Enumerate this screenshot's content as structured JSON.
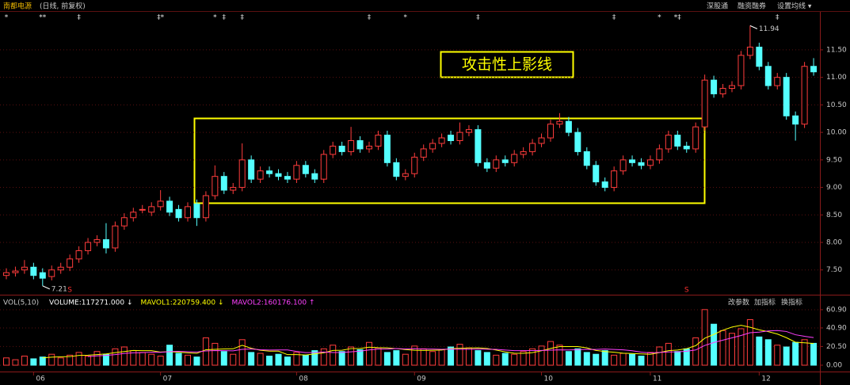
{
  "chart_data": {
    "type": "candlestick",
    "title": "南都电源",
    "subtitle": "(日线, 前复权)",
    "toolbar": [
      "深股通",
      "融资融券",
      "设置均线 ▾"
    ],
    "annotation": "攻击性上影线",
    "max_label": 11.94,
    "min_label": 7.21,
    "up_color": "#ff3c3c",
    "down_color": "#54ffff",
    "grid": true,
    "categories": [
      null,
      null,
      null,
      "06",
      null,
      null,
      null,
      null,
      null,
      null,
      null,
      null,
      null,
      null,
      null,
      null,
      null,
      "07",
      null,
      null,
      null,
      null,
      null,
      null,
      null,
      null,
      null,
      null,
      null,
      null,
      null,
      null,
      "08",
      null,
      null,
      null,
      null,
      null,
      null,
      null,
      null,
      null,
      null,
      null,
      null,
      "09",
      null,
      null,
      null,
      null,
      null,
      null,
      null,
      null,
      null,
      null,
      null,
      null,
      null,
      "10",
      null,
      null,
      null,
      null,
      null,
      null,
      null,
      null,
      null,
      null,
      null,
      "11",
      null,
      null,
      null,
      null,
      null,
      null,
      null,
      null,
      null,
      null,
      null,
      "12",
      null,
      null,
      null,
      null,
      null,
      null
    ],
    "open": [
      7.4,
      7.45,
      7.5,
      7.55,
      7.45,
      7.38,
      7.5,
      7.55,
      7.7,
      7.85,
      8.0,
      8.05,
      7.9,
      8.3,
      8.45,
      8.6,
      8.55,
      8.65,
      8.75,
      8.6,
      8.45,
      8.7,
      8.45,
      8.85,
      9.2,
      8.95,
      9.0,
      9.5,
      9.15,
      9.3,
      9.25,
      9.2,
      9.15,
      9.4,
      9.25,
      9.15,
      9.6,
      9.75,
      9.65,
      9.85,
      9.7,
      9.75,
      9.95,
      9.45,
      9.2,
      9.25,
      9.55,
      9.7,
      9.8,
      9.95,
      9.85,
      10.0,
      10.05,
      9.45,
      9.35,
      9.5,
      9.45,
      9.6,
      9.65,
      9.8,
      9.9,
      10.15,
      10.2,
      10.0,
      9.65,
      9.4,
      9.1,
      9.0,
      9.3,
      9.5,
      9.45,
      9.4,
      9.5,
      9.7,
      9.95,
      9.75,
      9.7,
      10.1,
      10.95,
      10.7,
      10.8,
      10.85,
      11.4,
      11.55,
      11.2,
      10.85,
      11.0,
      10.3,
      10.15,
      11.2
    ],
    "high": [
      7.53,
      7.56,
      7.68,
      7.63,
      7.53,
      7.58,
      7.63,
      7.78,
      7.93,
      8.08,
      8.13,
      8.35,
      8.38,
      8.53,
      8.63,
      8.68,
      8.73,
      8.95,
      8.83,
      8.68,
      8.73,
      8.78,
      8.93,
      9.4,
      9.28,
      9.08,
      9.8,
      9.58,
      9.38,
      9.38,
      9.33,
      9.28,
      9.48,
      9.48,
      9.33,
      9.68,
      9.83,
      9.83,
      10.1,
      9.93,
      9.83,
      10.03,
      10.03,
      9.53,
      9.33,
      9.63,
      9.78,
      9.88,
      9.98,
      10.03,
      10.18,
      10.13,
      10.13,
      9.53,
      9.58,
      9.58,
      9.68,
      9.73,
      9.88,
      9.98,
      10.23,
      10.35,
      10.28,
      10.08,
      9.73,
      9.48,
      9.18,
      9.38,
      9.58,
      9.58,
      9.53,
      9.58,
      9.78,
      10.03,
      10.03,
      9.83,
      10.18,
      11.05,
      11.03,
      10.88,
      10.93,
      11.48,
      11.94,
      11.63,
      11.28,
      11.08,
      11.08,
      10.38,
      11.28,
      11.35
    ],
    "low": [
      7.33,
      7.38,
      7.43,
      7.33,
      7.21,
      7.31,
      7.43,
      7.48,
      7.63,
      7.78,
      7.93,
      7.8,
      7.83,
      8.23,
      8.38,
      8.53,
      8.48,
      8.58,
      8.48,
      8.38,
      8.38,
      8.3,
      8.38,
      8.78,
      8.88,
      8.88,
      8.93,
      9.08,
      9.08,
      9.18,
      9.13,
      9.08,
      9.08,
      9.18,
      9.08,
      9.08,
      9.53,
      9.58,
      9.58,
      9.63,
      9.63,
      9.68,
      9.38,
      9.13,
      9.13,
      9.18,
      9.48,
      9.63,
      9.73,
      9.78,
      9.78,
      9.93,
      9.38,
      9.28,
      9.28,
      9.38,
      9.38,
      9.53,
      9.58,
      9.73,
      9.83,
      10.08,
      9.93,
      9.58,
      9.33,
      9.03,
      8.93,
      8.93,
      9.23,
      9.38,
      9.33,
      9.33,
      9.43,
      9.63,
      9.68,
      9.63,
      9.63,
      10.03,
      10.63,
      10.63,
      10.73,
      10.78,
      11.33,
      11.13,
      10.78,
      10.78,
      10.23,
      9.85,
      10.08,
      11.03
    ],
    "close": [
      7.45,
      7.48,
      7.55,
      7.4,
      7.35,
      7.5,
      7.55,
      7.7,
      7.85,
      8.0,
      8.05,
      7.9,
      8.3,
      8.45,
      8.55,
      8.6,
      8.65,
      8.75,
      8.55,
      8.45,
      8.65,
      8.45,
      8.85,
      9.2,
      8.95,
      9.0,
      9.5,
      9.15,
      9.3,
      9.25,
      9.2,
      9.15,
      9.4,
      9.25,
      9.15,
      9.6,
      9.75,
      9.65,
      9.85,
      9.7,
      9.75,
      9.95,
      9.45,
      9.2,
      9.25,
      9.55,
      9.7,
      9.8,
      9.9,
      9.85,
      10.0,
      10.05,
      9.45,
      9.35,
      9.5,
      9.45,
      9.6,
      9.65,
      9.8,
      9.9,
      10.15,
      10.2,
      10.0,
      9.65,
      9.4,
      9.1,
      9.0,
      9.3,
      9.5,
      9.45,
      9.4,
      9.5,
      9.7,
      9.95,
      9.75,
      9.7,
      10.1,
      10.95,
      10.7,
      10.8,
      10.85,
      11.4,
      11.55,
      11.2,
      10.85,
      11.0,
      10.3,
      10.15,
      11.2,
      11.1
    ],
    "ylim": [
      7.05,
      12.19
    ],
    "yticks": [
      {
        "value": 7.5,
        "label": "7.50"
      },
      {
        "value": 8,
        "label": "8.00"
      },
      {
        "value": 8.5,
        "label": "8.50"
      },
      {
        "value": 9,
        "label": "9.00"
      },
      {
        "value": 9.5,
        "label": "9.50"
      },
      {
        "value": 10,
        "label": "10.00"
      },
      {
        "value": 10.5,
        "label": "10.50"
      },
      {
        "value": 11,
        "label": "11.00"
      },
      {
        "value": 11.5,
        "label": "11.50"
      }
    ],
    "event_markers": [
      {
        "index": 0,
        "label": "*"
      },
      {
        "index": 4,
        "label": "**"
      },
      {
        "index": 8,
        "label": "‡"
      },
      {
        "index": 17,
        "label": "‡*"
      },
      {
        "index": 23,
        "label": "*"
      },
      {
        "index": 24,
        "label": "‡"
      },
      {
        "index": 26,
        "label": "‡"
      },
      {
        "index": 40,
        "label": "‡"
      },
      {
        "index": 44,
        "label": "*"
      },
      {
        "index": 52,
        "label": "‡"
      },
      {
        "index": 67,
        "label": "‡"
      },
      {
        "index": 72,
        "label": "*"
      },
      {
        "index": 74,
        "label": "*‡"
      },
      {
        "index": 85,
        "label": "‡"
      }
    ],
    "s_markers": [
      {
        "index": 7,
        "label": "S"
      },
      {
        "index": 75,
        "label": "S"
      }
    ],
    "volume": {
      "indicator": "VOL(5,10)",
      "legend": [
        {
          "text": "VOLUME:117271.000 ↓",
          "color": "#ffffff"
        },
        {
          "text": "MAVOL1:220759.400 ↓",
          "color": "#ffff00"
        },
        {
          "text": "MAVOL2:160176.100 ↑",
          "color": "#ff40ff"
        }
      ],
      "toolbar": [
        "改参数",
        "加指标",
        "换指标"
      ],
      "ma_periods": [
        5,
        10
      ],
      "values": [
        8,
        6,
        10,
        7,
        9,
        12,
        8,
        11,
        14,
        10,
        15,
        12,
        18,
        20,
        16,
        14,
        12,
        10,
        22,
        13,
        11,
        9,
        30,
        24,
        15,
        12,
        28,
        14,
        13,
        10,
        12,
        9,
        14,
        11,
        16,
        18,
        22,
        15,
        20,
        17,
        25,
        19,
        14,
        16,
        12,
        21,
        18,
        15,
        17,
        20,
        23,
        19,
        16,
        14,
        11,
        13,
        12,
        15,
        18,
        21,
        26,
        22,
        15,
        18,
        14,
        12,
        16,
        11,
        13,
        12,
        10,
        14,
        20,
        24,
        15,
        18,
        30,
        61,
        45,
        38,
        35,
        40,
        50,
        31,
        28,
        22,
        20,
        25,
        28,
        24
      ],
      "ylim": [
        0,
        67.8
      ],
      "yticks": [
        {
          "value": 0,
          "label": "0.00"
        },
        {
          "value": 20.5,
          "label": "20.50"
        },
        {
          "value": 40.9,
          "label": "40.90"
        },
        {
          "value": 60.9,
          "label": "60.90"
        }
      ]
    }
  }
}
